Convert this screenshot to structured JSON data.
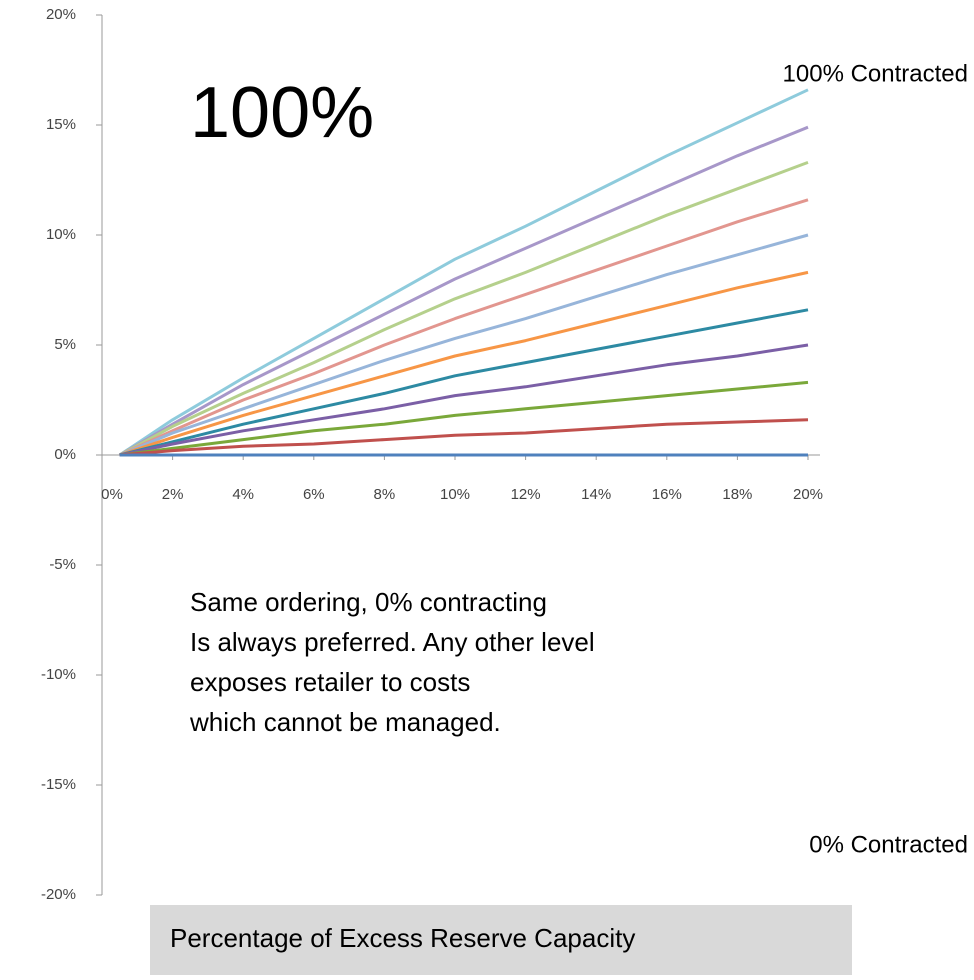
{
  "chart_data": {
    "type": "line",
    "x": [
      0.5,
      2,
      4,
      6,
      8,
      10,
      12,
      14,
      16,
      18,
      20
    ],
    "xlim": [
      0,
      20
    ],
    "xticks": [
      {
        "value": 0,
        "label": "0%"
      },
      {
        "value": 2,
        "label": "2%"
      },
      {
        "value": 4,
        "label": "4%"
      },
      {
        "value": 6,
        "label": "6%"
      },
      {
        "value": 8,
        "label": "8%"
      },
      {
        "value": 10,
        "label": "10%"
      },
      {
        "value": 12,
        "label": "12%"
      },
      {
        "value": 14,
        "label": "14%"
      },
      {
        "value": 16,
        "label": "16%"
      },
      {
        "value": 18,
        "label": "18%"
      },
      {
        "value": 20,
        "label": "20%"
      }
    ],
    "ylim": [
      -20,
      20
    ],
    "yticks": [
      {
        "value": 20,
        "label": "20%"
      },
      {
        "value": 15,
        "label": "15%"
      },
      {
        "value": 10,
        "label": "10%"
      },
      {
        "value": 5,
        "label": "5%"
      },
      {
        "value": 0,
        "label": "0%"
      },
      {
        "value": -5,
        "label": "-5%"
      },
      {
        "value": -10,
        "label": "-10%"
      },
      {
        "value": -15,
        "label": "-15%"
      },
      {
        "value": -20,
        "label": "-20%"
      }
    ],
    "xlabel": "Percentage of Excess Reserve Capacity",
    "annotations": [
      "100%",
      "100% Contracted",
      "0% Contracted"
    ],
    "note_lines": [
      "Same ordering, 0% contracting",
      "Is always preferred.  Any other level",
      "exposes retailer to costs",
      "which cannot be managed."
    ],
    "series": [
      {
        "color": "#8ecbdc",
        "values": [
          0,
          1.6,
          3.5,
          5.3,
          7.1,
          8.9,
          10.4,
          12.0,
          13.6,
          15.1,
          16.6
        ]
      },
      {
        "color": "#a797c9",
        "values": [
          0,
          1.4,
          3.2,
          4.8,
          6.4,
          8.0,
          9.4,
          10.8,
          12.2,
          13.6,
          14.9
        ]
      },
      {
        "color": "#b5d08c",
        "values": [
          0,
          1.3,
          2.8,
          4.2,
          5.7,
          7.1,
          8.3,
          9.6,
          10.9,
          12.1,
          13.3
        ]
      },
      {
        "color": "#e2968f",
        "values": [
          0,
          1.1,
          2.5,
          3.7,
          5.0,
          6.2,
          7.3,
          8.4,
          9.5,
          10.6,
          11.6
        ]
      },
      {
        "color": "#97b5da",
        "values": [
          0,
          1.0,
          2.1,
          3.2,
          4.3,
          5.3,
          6.2,
          7.2,
          8.2,
          9.1,
          10.0
        ]
      },
      {
        "color": "#f79646",
        "values": [
          0,
          0.8,
          1.8,
          2.7,
          3.6,
          4.5,
          5.2,
          6.0,
          6.8,
          7.6,
          8.3
        ]
      },
      {
        "color": "#2d8aa3",
        "values": [
          0,
          0.6,
          1.4,
          2.1,
          2.8,
          3.6,
          4.2,
          4.8,
          5.4,
          6.0,
          6.6
        ]
      },
      {
        "color": "#7b5fa6",
        "values": [
          0,
          0.5,
          1.1,
          1.6,
          2.1,
          2.7,
          3.1,
          3.6,
          4.1,
          4.5,
          5.0
        ]
      },
      {
        "color": "#7aa83a",
        "values": [
          0,
          0.3,
          0.7,
          1.1,
          1.4,
          1.8,
          2.1,
          2.4,
          2.7,
          3.0,
          3.3
        ]
      },
      {
        "color": "#c0504d",
        "values": [
          0,
          0.2,
          0.4,
          0.5,
          0.7,
          0.9,
          1.0,
          1.2,
          1.4,
          1.5,
          1.6
        ]
      },
      {
        "color": "#4f81bd",
        "values": [
          0,
          0,
          0,
          0,
          0,
          0,
          0,
          0,
          0,
          0,
          0
        ]
      }
    ]
  }
}
